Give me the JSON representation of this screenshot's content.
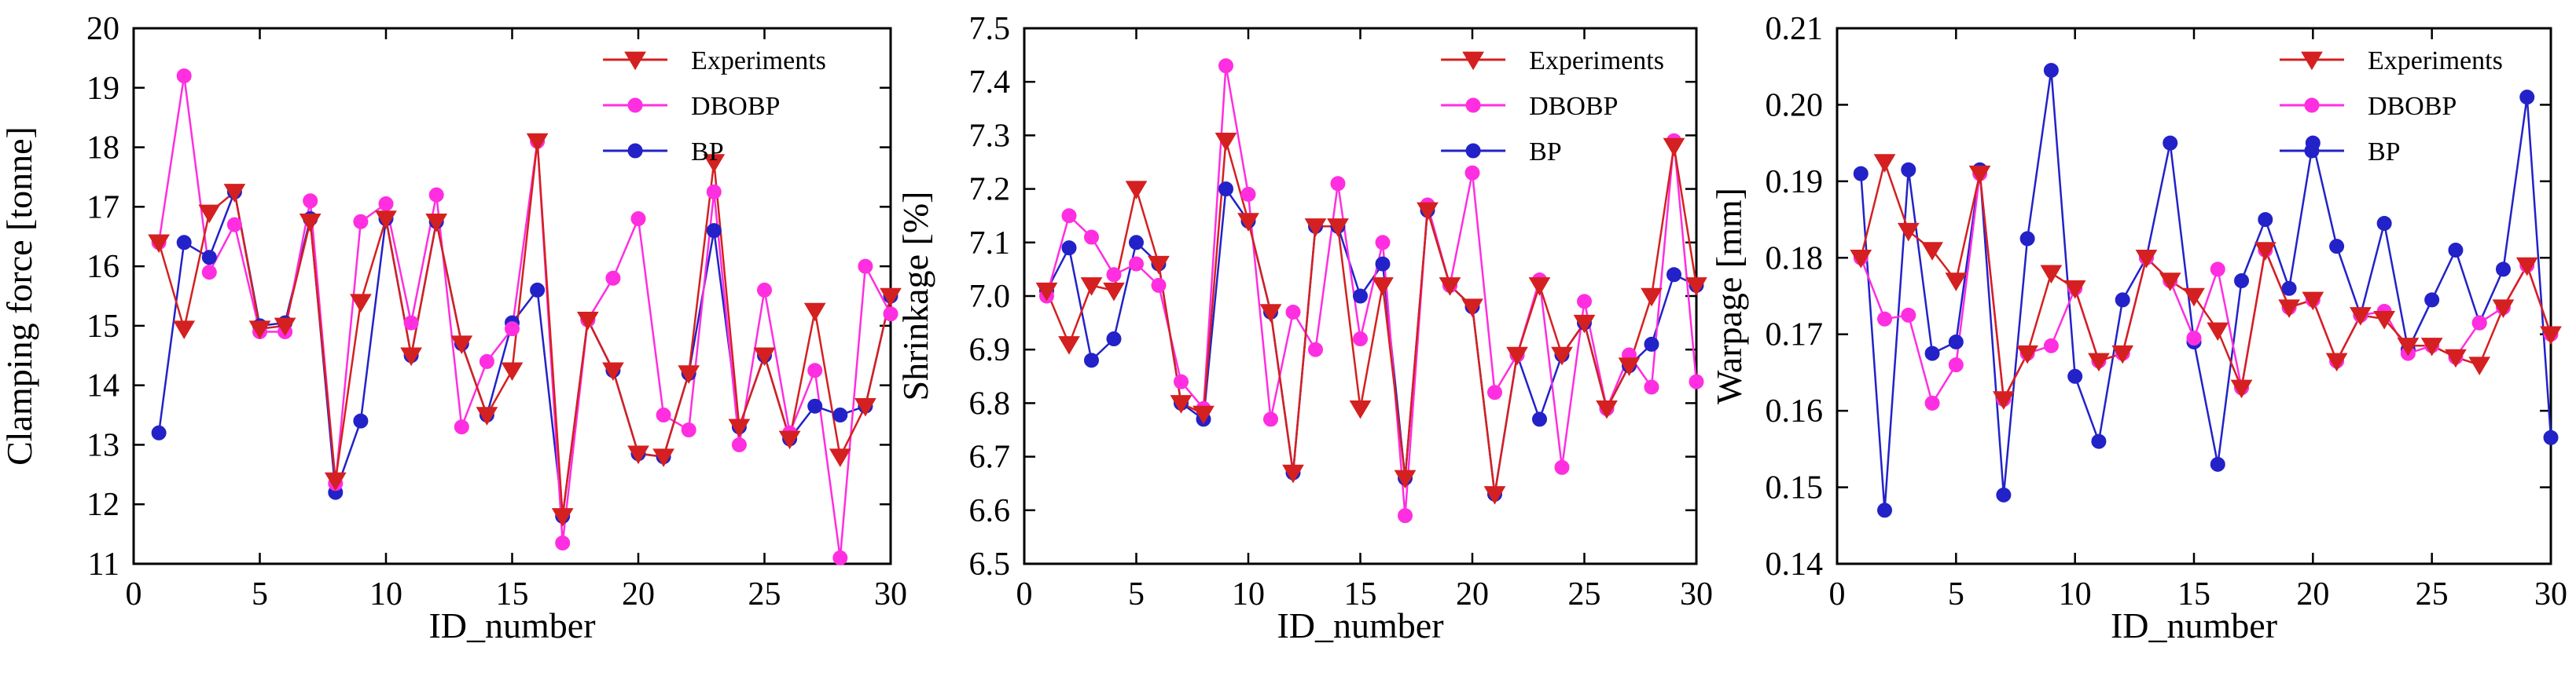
{
  "chart_data": [
    {
      "type": "line",
      "title": "",
      "xlabel": "ID_number",
      "ylabel": "Clamping force [tonne]",
      "xlim": [
        0,
        30
      ],
      "ylim": [
        11,
        20
      ],
      "xticks": [
        0,
        5,
        10,
        15,
        20,
        25,
        30
      ],
      "yticks": [
        11,
        12,
        13,
        14,
        15,
        16,
        17,
        18,
        19,
        20
      ],
      "x": [
        1,
        2,
        3,
        4,
        5,
        6,
        7,
        8,
        9,
        10,
        11,
        12,
        13,
        14,
        15,
        16,
        17,
        18,
        19,
        20,
        21,
        22,
        23,
        24,
        25,
        26,
        27,
        28,
        29,
        30
      ],
      "series": [
        {
          "name": "Experiments",
          "color": "#d42020",
          "marker": "triangle-down",
          "values": [
            16.4,
            14.95,
            16.9,
            17.25,
            14.95,
            15.0,
            16.75,
            12.4,
            15.4,
            16.8,
            14.5,
            16.75,
            14.7,
            13.5,
            14.25,
            18.1,
            11.8,
            15.1,
            14.25,
            12.85,
            12.8,
            14.2,
            17.75,
            13.3,
            14.5,
            13.1,
            15.25,
            12.8,
            13.65,
            15.5
          ]
        },
        {
          "name": "DBOBP",
          "color": "#ff2ee0",
          "marker": "circle",
          "values": [
            16.4,
            19.2,
            15.9,
            16.7,
            14.9,
            14.9,
            17.1,
            12.35,
            16.75,
            17.05,
            15.05,
            17.2,
            13.3,
            14.4,
            14.95,
            18.1,
            11.35,
            15.1,
            15.8,
            16.8,
            13.5,
            13.25,
            17.25,
            13.0,
            15.6,
            13.2,
            14.25,
            11.1,
            16.0,
            15.2
          ]
        },
        {
          "name": "BP",
          "color": "#2222c8",
          "marker": "circle",
          "values": [
            13.2,
            16.4,
            16.15,
            17.25,
            15.0,
            15.05,
            16.8,
            12.2,
            13.4,
            16.8,
            14.5,
            16.75,
            14.7,
            13.5,
            15.05,
            15.6,
            11.8,
            15.1,
            14.25,
            12.85,
            12.8,
            14.2,
            16.6,
            13.3,
            14.5,
            13.1,
            13.65,
            13.5,
            13.65,
            15.5
          ]
        }
      ]
    },
    {
      "type": "line",
      "title": "",
      "xlabel": "ID_number",
      "ylabel": "Shrinkage [%]",
      "xlim": [
        0,
        30
      ],
      "ylim": [
        6.5,
        7.5
      ],
      "xticks": [
        0,
        5,
        10,
        15,
        20,
        25,
        30
      ],
      "yticks": [
        6.5,
        6.6,
        6.7,
        6.8,
        6.9,
        7.0,
        7.1,
        7.2,
        7.3,
        7.4,
        7.5
      ],
      "x": [
        1,
        2,
        3,
        4,
        5,
        6,
        7,
        8,
        9,
        10,
        11,
        12,
        13,
        14,
        15,
        16,
        17,
        18,
        19,
        20,
        21,
        22,
        23,
        24,
        25,
        26,
        27,
        28,
        29,
        30
      ],
      "series": [
        {
          "name": "Experiments",
          "color": "#d42020",
          "marker": "triangle-down",
          "values": [
            7.01,
            6.91,
            7.02,
            7.01,
            7.2,
            7.06,
            6.8,
            6.78,
            7.29,
            7.14,
            6.97,
            6.67,
            7.13,
            7.13,
            6.79,
            7.02,
            6.66,
            7.16,
            7.02,
            6.98,
            6.63,
            6.89,
            7.02,
            6.89,
            6.95,
            6.79,
            6.87,
            7.0,
            7.28,
            7.02
          ]
        },
        {
          "name": "DBOBP",
          "color": "#ff2ee0",
          "marker": "circle",
          "values": [
            7.0,
            7.15,
            7.11,
            7.04,
            7.06,
            7.02,
            6.84,
            6.79,
            7.43,
            7.19,
            6.77,
            6.97,
            6.9,
            7.21,
            6.92,
            7.1,
            6.59,
            7.17,
            7.02,
            7.23,
            6.82,
            6.89,
            7.03,
            6.68,
            6.99,
            6.79,
            6.89,
            6.83,
            7.29,
            6.84
          ]
        },
        {
          "name": "BP",
          "color": "#2222c8",
          "marker": "circle",
          "values": [
            7.01,
            7.09,
            6.88,
            6.92,
            7.1,
            7.06,
            6.8,
            6.77,
            7.2,
            7.14,
            6.97,
            6.67,
            7.13,
            7.13,
            7.0,
            7.06,
            6.66,
            7.16,
            7.02,
            6.98,
            6.63,
            6.89,
            6.77,
            6.89,
            6.95,
            6.79,
            6.87,
            6.91,
            7.04,
            7.02
          ]
        }
      ]
    },
    {
      "type": "line",
      "title": "",
      "xlabel": "ID_number",
      "ylabel": "Warpage [mm]",
      "xlim": [
        0,
        30
      ],
      "ylim": [
        0.14,
        0.21
      ],
      "xticks": [
        0,
        5,
        10,
        15,
        20,
        25,
        30
      ],
      "yticks": [
        0.14,
        0.15,
        0.16,
        0.17,
        0.18,
        0.19,
        0.2,
        0.21
      ],
      "ytick_labels": [
        "0.14",
        "0.15",
        "0.16",
        "0.17",
        "0.18",
        "0.19",
        "0.20",
        "0.21"
      ],
      "x": [
        1,
        2,
        3,
        4,
        5,
        6,
        7,
        8,
        9,
        10,
        11,
        12,
        13,
        14,
        15,
        16,
        17,
        18,
        19,
        20,
        21,
        22,
        23,
        24,
        25,
        26,
        27,
        28,
        29,
        30
      ],
      "series": [
        {
          "name": "Experiments",
          "color": "#d42020",
          "marker": "triangle-down",
          "values": [
            0.18,
            0.1925,
            0.1835,
            0.181,
            0.177,
            0.191,
            0.1615,
            0.1675,
            0.178,
            0.176,
            0.1665,
            0.1675,
            0.18,
            0.177,
            0.175,
            0.1705,
            0.163,
            0.181,
            0.1735,
            0.1745,
            0.1665,
            0.1725,
            0.172,
            0.1685,
            0.1685,
            0.167,
            0.166,
            0.1735,
            0.179,
            0.17
          ]
        },
        {
          "name": "DBOBP",
          "color": "#ff2ee0",
          "marker": "circle",
          "values": [
            0.18,
            0.172,
            0.1725,
            0.161,
            0.166,
            0.191,
            0.1615,
            0.1675,
            0.1685,
            0.176,
            0.1665,
            0.1675,
            0.18,
            0.177,
            0.1695,
            0.1785,
            0.163,
            0.181,
            0.1735,
            0.1745,
            0.1665,
            0.1725,
            0.173,
            0.1675,
            0.1685,
            0.167,
            0.1715,
            0.1735,
            0.179,
            0.17
          ]
        },
        {
          "name": "BP",
          "color": "#2222c8",
          "marker": "circle",
          "values": [
            0.191,
            0.147,
            0.1915,
            0.1675,
            0.169,
            0.1915,
            0.149,
            0.1825,
            0.2045,
            0.1645,
            0.156,
            0.1745,
            0.18,
            0.195,
            0.169,
            0.153,
            0.177,
            0.185,
            0.176,
            0.195,
            0.1815,
            0.1725,
            0.1845,
            0.168,
            0.1745,
            0.181,
            0.1715,
            0.1785,
            0.201,
            0.1565
          ]
        }
      ]
    }
  ]
}
